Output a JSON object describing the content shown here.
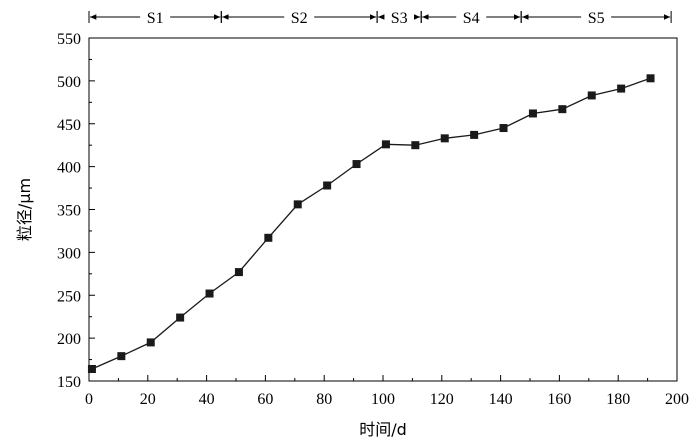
{
  "chart_data": {
    "type": "line",
    "xlabel": "时间/d",
    "ylabel": "粒径/μm",
    "xlim": [
      0,
      200
    ],
    "ylim": [
      150,
      550
    ],
    "x_ticks": [
      0,
      20,
      40,
      60,
      80,
      100,
      120,
      140,
      160,
      180,
      200
    ],
    "y_ticks": [
      150,
      200,
      250,
      300,
      350,
      400,
      450,
      500,
      550
    ],
    "x_tick_labels": [
      "0",
      "20",
      "40",
      "60",
      "80",
      "100",
      "120",
      "140",
      "160",
      "180",
      "200"
    ],
    "y_tick_labels": [
      "150",
      "200",
      "250",
      "300",
      "350",
      "400",
      "450",
      "500",
      "550"
    ],
    "grid": false,
    "series": [
      {
        "x": [
          1,
          11,
          21,
          31,
          41,
          51,
          61,
          71,
          81,
          91,
          101,
          111,
          121,
          131,
          141,
          151,
          161,
          171,
          181,
          191
        ],
        "y": [
          164,
          179,
          195,
          224,
          252,
          277,
          317,
          356,
          378,
          403,
          426,
          425,
          433,
          437,
          445,
          462,
          467,
          483,
          491,
          503
        ],
        "marker": "square",
        "color": "#1a1a1a"
      }
    ],
    "stages": [
      {
        "label": "S1",
        "start": 0,
        "end": 45
      },
      {
        "label": "S2",
        "start": 45,
        "end": 98
      },
      {
        "label": "S3",
        "start": 98,
        "end": 113
      },
      {
        "label": "S4",
        "start": 113,
        "end": 147
      },
      {
        "label": "S5",
        "start": 147,
        "end": 198
      }
    ]
  }
}
